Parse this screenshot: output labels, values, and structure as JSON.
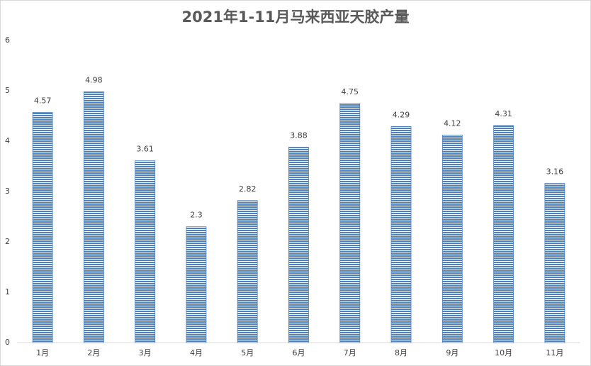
{
  "chart_data": {
    "type": "bar",
    "title": "2021年1-11月马来西亚天胶产量",
    "categories": [
      "1月",
      "2月",
      "3月",
      "4月",
      "5月",
      "6月",
      "7月",
      "8月",
      "9月",
      "10月",
      "11月"
    ],
    "values": [
      4.57,
      4.98,
      3.61,
      2.3,
      2.82,
      3.88,
      4.75,
      4.29,
      4.12,
      4.31,
      3.16
    ],
    "color": "#4f81bd",
    "ylim": [
      0,
      6
    ],
    "yticks": [
      0,
      1,
      2,
      3,
      4,
      5,
      6
    ],
    "grid": false
  }
}
